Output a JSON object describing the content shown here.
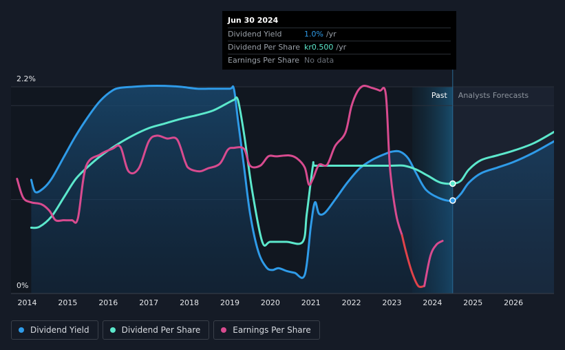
{
  "tooltip": {
    "date": "Jun 30 2024",
    "rows": [
      {
        "label": "Dividend Yield",
        "value": "1.0%",
        "unit": "/yr",
        "color": "#2f9be8"
      },
      {
        "label": "Dividend Per Share",
        "value": "kr0.500",
        "unit": "/yr",
        "color": "#5ce8cc"
      },
      {
        "label": "Earnings Per Share",
        "value": "No data",
        "unit": "",
        "color": "#6b717a"
      }
    ]
  },
  "sections": {
    "past": "Past",
    "forecast": "Analysts Forecasts"
  },
  "legend": [
    {
      "label": "Dividend Yield",
      "color": "#2f9be8"
    },
    {
      "label": "Dividend Per Share",
      "color": "#5ce8cc"
    },
    {
      "label": "Earnings Per Share",
      "color": "#d84b8f"
    }
  ],
  "chart_data": {
    "type": "line",
    "title": "",
    "xlabel": "",
    "ylabel": "",
    "ylim": [
      0,
      2.2
    ],
    "y_tick_labels": [
      "2.2%",
      "0%"
    ],
    "y_tick_values": [
      2.2,
      0
    ],
    "xlim": [
      2013.6,
      2027.0
    ],
    "x_tick_labels": [
      "2014",
      "2015",
      "2016",
      "2017",
      "2018",
      "2019",
      "2020",
      "2021",
      "2022",
      "2023",
      "2024",
      "2025",
      "2026"
    ],
    "past_end": 2024.5,
    "forecast_shade_start": 2023.5,
    "series": [
      {
        "name": "Dividend Yield",
        "color": "#2f9be8",
        "x": [
          2014.1,
          2014.2,
          2014.4,
          2014.6,
          2014.9,
          2015.2,
          2015.5,
          2015.8,
          2016.1,
          2016.3,
          2016.6,
          2017.0,
          2017.4,
          2017.8,
          2018.2,
          2018.6,
          2019.0,
          2019.1,
          2019.2,
          2019.35,
          2019.5,
          2019.7,
          2019.9,
          2020.05,
          2020.2,
          2020.4,
          2020.6,
          2020.85,
          2021.0,
          2021.1,
          2021.2,
          2021.35,
          2021.6,
          2021.9,
          2022.2,
          2022.5,
          2022.8,
          2023.0,
          2023.2,
          2023.4,
          2023.6,
          2023.85,
          2024.2,
          2024.5,
          2024.7,
          2024.9,
          2025.2,
          2025.6,
          2026.0,
          2026.5,
          2027.0
        ],
        "values": [
          1.21,
          1.08,
          1.12,
          1.22,
          1.45,
          1.68,
          1.88,
          2.05,
          2.16,
          2.19,
          2.2,
          2.21,
          2.21,
          2.2,
          2.18,
          2.18,
          2.18,
          2.18,
          1.85,
          1.35,
          0.85,
          0.45,
          0.28,
          0.25,
          0.27,
          0.24,
          0.22,
          0.2,
          0.72,
          0.97,
          0.85,
          0.86,
          1.0,
          1.18,
          1.33,
          1.42,
          1.48,
          1.51,
          1.51,
          1.44,
          1.28,
          1.1,
          1.01,
          0.99,
          1.06,
          1.18,
          1.28,
          1.34,
          1.4,
          1.5,
          1.62
        ]
      },
      {
        "name": "Dividend Per Share",
        "color": "#5ce8cc",
        "x": [
          2014.1,
          2014.3,
          2014.6,
          2014.9,
          2015.2,
          2015.5,
          2015.8,
          2016.2,
          2016.6,
          2017.0,
          2017.4,
          2017.8,
          2018.2,
          2018.6,
          2019.0,
          2019.1,
          2019.2,
          2019.35,
          2019.55,
          2019.8,
          2020.0,
          2020.4,
          2020.8,
          2020.9,
          2021.05,
          2021.1,
          2021.5,
          2022.0,
          2022.5,
          2023.0,
          2023.3,
          2023.6,
          2023.9,
          2024.2,
          2024.5,
          2024.7,
          2024.9,
          2025.2,
          2025.6,
          2026.0,
          2026.5,
          2027.0
        ],
        "values": [
          0.7,
          0.71,
          0.82,
          1.02,
          1.22,
          1.35,
          1.46,
          1.58,
          1.68,
          1.76,
          1.81,
          1.86,
          1.9,
          1.95,
          2.04,
          2.06,
          2.06,
          1.7,
          1.1,
          0.55,
          0.55,
          0.55,
          0.55,
          0.85,
          1.36,
          1.36,
          1.36,
          1.36,
          1.36,
          1.36,
          1.36,
          1.32,
          1.25,
          1.18,
          1.17,
          1.2,
          1.32,
          1.42,
          1.47,
          1.52,
          1.6,
          1.72
        ]
      },
      {
        "name": "Earnings Per Share",
        "color": "#d84b8f",
        "x": [
          2013.75,
          2013.9,
          2014.1,
          2014.35,
          2014.55,
          2014.7,
          2014.9,
          2015.1,
          2015.25,
          2015.45,
          2015.8,
          2016.1,
          2016.3,
          2016.5,
          2016.75,
          2017.0,
          2017.2,
          2017.45,
          2017.7,
          2017.9,
          2018.0,
          2018.25,
          2018.45,
          2018.75,
          2018.95,
          2019.1,
          2019.35,
          2019.5,
          2019.75,
          2019.95,
          2020.15,
          2020.45,
          2020.65,
          2020.85,
          2020.95,
          2021.05,
          2021.2,
          2021.4,
          2021.6,
          2021.85,
          2022.0,
          2022.15,
          2022.3,
          2022.5,
          2022.7,
          2022.85,
          2022.95,
          2023.1,
          2023.25
        ],
        "values": [
          1.22,
          1.02,
          0.97,
          0.95,
          0.88,
          0.78,
          0.78,
          0.78,
          0.8,
          1.35,
          1.48,
          1.54,
          1.56,
          1.3,
          1.33,
          1.62,
          1.68,
          1.65,
          1.64,
          1.4,
          1.33,
          1.3,
          1.33,
          1.38,
          1.53,
          1.55,
          1.54,
          1.36,
          1.36,
          1.46,
          1.46,
          1.47,
          1.44,
          1.34,
          1.16,
          1.22,
          1.37,
          1.37,
          1.57,
          1.71,
          1.99,
          2.15,
          2.21,
          2.19,
          2.16,
          2.12,
          1.35,
          0.85,
          0.62
        ]
      },
      {
        "name": "Earnings Per Share (decline)",
        "color": "#e0434a",
        "x": [
          2023.25,
          2023.35,
          2023.5,
          2023.65,
          2023.8
        ],
        "values": [
          0.62,
          0.44,
          0.22,
          0.08,
          0.08
        ]
      },
      {
        "name": "Earnings Per Share (recovery)",
        "color": "#d84b8f",
        "x": [
          2023.8,
          2023.95,
          2024.1,
          2024.25
        ],
        "values": [
          0.08,
          0.4,
          0.52,
          0.56
        ]
      }
    ],
    "highlight_points": [
      {
        "series": "Dividend Yield",
        "x": 2024.5,
        "y": 0.99
      },
      {
        "series": "Dividend Per Share",
        "x": 2024.5,
        "y": 1.17
      }
    ]
  }
}
